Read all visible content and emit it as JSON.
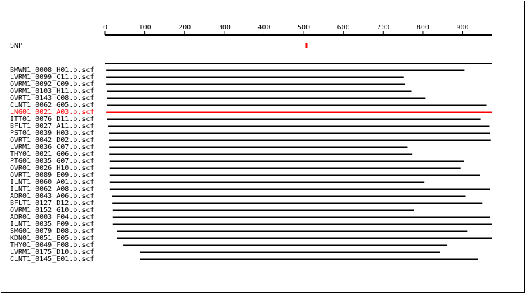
{
  "chart_data": {
    "type": "alignment",
    "xlim": [
      0,
      975
    ],
    "xticks": [
      0,
      100,
      200,
      300,
      400,
      500,
      600,
      700,
      800,
      900
    ],
    "snp": {
      "label": "SNP",
      "position": 506,
      "color": "#ff0000"
    },
    "reads": [
      {
        "name": "BMWN1_0008_H01.b.scf",
        "start": 2,
        "end": 905,
        "color": "#000000"
      },
      {
        "name": "LVRM1_0099_C11.b.scf",
        "start": 2,
        "end": 752,
        "color": "#000000"
      },
      {
        "name": "OVRM1_0092_C09.b.scf",
        "start": 2,
        "end": 756,
        "color": "#000000"
      },
      {
        "name": "OVRM1_0103_H11.b.scf",
        "start": 4,
        "end": 771,
        "color": "#000000"
      },
      {
        "name": "OVRT1_0143_C08.b.scf",
        "start": 4,
        "end": 806,
        "color": "#000000"
      },
      {
        "name": "CLNT1_0062_G05.b.scf",
        "start": 4,
        "end": 960,
        "color": "#000000"
      },
      {
        "name": "LNG01_0021_A03.b.scf",
        "start": 2,
        "end": 975,
        "color": "#ff0000"
      },
      {
        "name": "ITT01_0076_D11.b.scf",
        "start": 5,
        "end": 946,
        "color": "#000000"
      },
      {
        "name": "BFLT1_0027_A11.b.scf",
        "start": 7,
        "end": 967,
        "color": "#000000"
      },
      {
        "name": "PST01_0039_H03.b.scf",
        "start": 9,
        "end": 969,
        "color": "#000000"
      },
      {
        "name": "OVRT1_0042_D02.b.scf",
        "start": 9,
        "end": 971,
        "color": "#000000"
      },
      {
        "name": "LVRM1_0036_C07.b.scf",
        "start": 11,
        "end": 762,
        "color": "#000000"
      },
      {
        "name": "THY01_0021_G06.b.scf",
        "start": 11,
        "end": 774,
        "color": "#000000"
      },
      {
        "name": "PTG01_0035_G07.b.scf",
        "start": 12,
        "end": 903,
        "color": "#000000"
      },
      {
        "name": "OVR01_0026_H10.b.scf",
        "start": 12,
        "end": 895,
        "color": "#000000"
      },
      {
        "name": "OVRT1_0089_E09.b.scf",
        "start": 12,
        "end": 945,
        "color": "#000000"
      },
      {
        "name": "ILNT1_0060_A01.b.scf",
        "start": 12,
        "end": 804,
        "color": "#000000"
      },
      {
        "name": "ILNT1_0062_A08.b.scf",
        "start": 12,
        "end": 969,
        "color": "#000000"
      },
      {
        "name": "ADR01_0043_A06.b.scf",
        "start": 16,
        "end": 907,
        "color": "#000000"
      },
      {
        "name": "BFLT1_0127_D12.b.scf",
        "start": 18,
        "end": 949,
        "color": "#000000"
      },
      {
        "name": "OVRM1_0152_G10.b.scf",
        "start": 19,
        "end": 778,
        "color": "#000000"
      },
      {
        "name": "ADR01_0003_F04.b.scf",
        "start": 19,
        "end": 969,
        "color": "#000000"
      },
      {
        "name": "ILNT1_0035_F09.b.scf",
        "start": 19,
        "end": 975,
        "color": "#000000"
      },
      {
        "name": "SMG01_0079_D08.b.scf",
        "start": 30,
        "end": 912,
        "color": "#000000"
      },
      {
        "name": "KDN01_0051_E05.b.scf",
        "start": 30,
        "end": 975,
        "color": "#000000"
      },
      {
        "name": "THY01_0049_F08.b.scf",
        "start": 46,
        "end": 861,
        "color": "#000000"
      },
      {
        "name": "LVRM1_0175_D10.b.scf",
        "start": 87,
        "end": 843,
        "color": "#000000"
      },
      {
        "name": "CLNT1_0145_E01.b.scf",
        "start": 87,
        "end": 939,
        "color": "#000000"
      }
    ]
  }
}
